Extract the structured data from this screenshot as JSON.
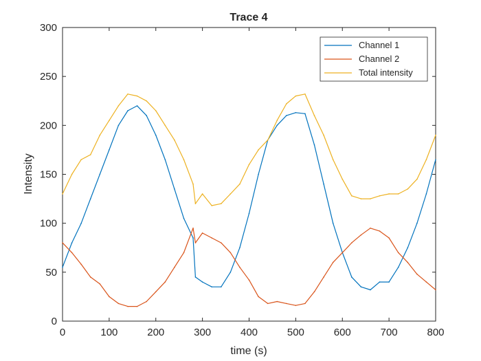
{
  "chart_data": {
    "type": "line",
    "title": "Trace 4",
    "xlabel": "time (s)",
    "ylabel": "Intensity",
    "xlim": [
      0,
      800
    ],
    "ylim": [
      0,
      300
    ],
    "xticks": [
      0,
      100,
      200,
      300,
      400,
      500,
      600,
      700,
      800
    ],
    "yticks": [
      0,
      50,
      100,
      150,
      200,
      250,
      300
    ],
    "grid": false,
    "legend_position": "top-right",
    "x": [
      0,
      20,
      40,
      60,
      80,
      100,
      120,
      140,
      160,
      180,
      200,
      220,
      240,
      260,
      280,
      285,
      300,
      320,
      340,
      360,
      380,
      400,
      420,
      440,
      460,
      480,
      500,
      520,
      540,
      560,
      580,
      600,
      620,
      640,
      660,
      680,
      700,
      720,
      740,
      760,
      780,
      800
    ],
    "series": [
      {
        "name": "Channel 1",
        "color": "#0072BD",
        "values": [
          55,
          80,
          100,
          125,
          150,
          175,
          200,
          215,
          220,
          210,
          190,
          165,
          135,
          105,
          85,
          45,
          40,
          35,
          35,
          50,
          75,
          110,
          150,
          185,
          200,
          210,
          213,
          212,
          180,
          140,
          100,
          70,
          45,
          35,
          32,
          40,
          40,
          55,
          75,
          100,
          130,
          165
        ]
      },
      {
        "name": "Channel 2",
        "color": "#D95319",
        "values": [
          80,
          70,
          58,
          45,
          38,
          25,
          18,
          15,
          15,
          20,
          30,
          40,
          55,
          70,
          95,
          80,
          90,
          85,
          80,
          70,
          55,
          42,
          25,
          18,
          20,
          18,
          16,
          18,
          30,
          45,
          60,
          70,
          80,
          88,
          95,
          92,
          85,
          70,
          60,
          48,
          40,
          32
        ]
      },
      {
        "name": "Total intensity",
        "color": "#EDB120",
        "values": [
          130,
          150,
          165,
          170,
          190,
          205,
          220,
          232,
          230,
          225,
          215,
          200,
          185,
          165,
          140,
          120,
          130,
          118,
          120,
          130,
          140,
          160,
          175,
          185,
          205,
          222,
          230,
          232,
          210,
          190,
          165,
          145,
          128,
          125,
          125,
          128,
          130,
          130,
          135,
          145,
          165,
          190
        ]
      }
    ]
  }
}
